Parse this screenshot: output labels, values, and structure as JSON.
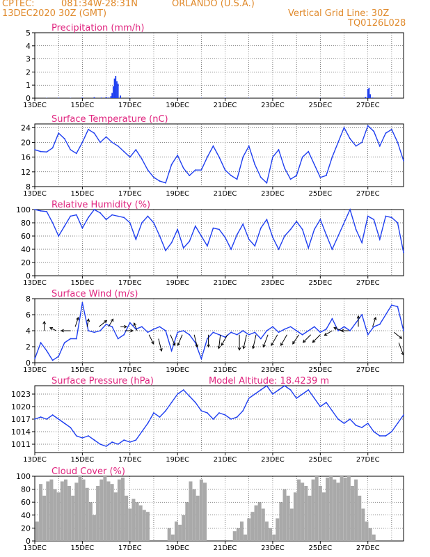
{
  "header": {
    "source": "CPTEC:",
    "coords": "081:34W-28:31N",
    "location": "ORLANDO (U.S.A.)",
    "datetime": "13DEC2020 30Z (GMT)",
    "grid_note": "Vertical Grid Line: 30Z",
    "code": "TQ0126L028"
  },
  "colors": {
    "title": "#e0257f",
    "header": "#e08a2c",
    "series": "#1f3ff0",
    "cloud": "#a9a9a9",
    "arrows": "#000000"
  },
  "x_tick_labels": [
    "13DEC",
    "15DEC",
    "17DEC",
    "19DEC",
    "21DEC",
    "23DEC",
    "25DEC",
    "27DEC"
  ],
  "chart_data": [
    {
      "id": "precip",
      "type": "bar",
      "title": "Precipitation (mm/h)",
      "ylim": [
        0,
        5
      ],
      "yticks": [
        0,
        1,
        2,
        3,
        4,
        5
      ],
      "xlim": [
        0,
        15.5
      ],
      "grid": true,
      "x": [
        0.5,
        1.0,
        1.5,
        2.0,
        2.5,
        2.8,
        3.0,
        3.1,
        3.2,
        3.25,
        3.3,
        3.35,
        3.4,
        3.45,
        3.5,
        3.6,
        4.0,
        5.0,
        6.0,
        7.0,
        8.0,
        9.0,
        10.0,
        11.0,
        12.0,
        13.0,
        13.9,
        14.0,
        14.05,
        14.1,
        14.2,
        15.0
      ],
      "values": [
        0.02,
        0.03,
        0.02,
        0.05,
        0.08,
        0.05,
        0.1,
        0.05,
        0.15,
        0.4,
        0.9,
        1.5,
        1.7,
        1.3,
        1.1,
        0.2,
        0.03,
        0.02,
        0.01,
        0.02,
        0.03,
        0.02,
        0.01,
        0.02,
        0.02,
        0.03,
        0.1,
        0.7,
        0.8,
        0.3,
        0.05,
        0.02
      ]
    },
    {
      "id": "temp",
      "type": "line",
      "title": "Surface Temperature (nC)",
      "ylim": [
        8,
        25
      ],
      "yticks": [
        8,
        12,
        16,
        20,
        24
      ],
      "xlim": [
        0,
        15.5
      ],
      "grid": true,
      "x": [
        0,
        0.25,
        0.5,
        0.75,
        1.0,
        1.25,
        1.5,
        1.75,
        2.0,
        2.25,
        2.5,
        2.75,
        3.0,
        3.25,
        3.5,
        3.75,
        4.0,
        4.25,
        4.5,
        4.75,
        5.0,
        5.25,
        5.5,
        5.75,
        6.0,
        6.25,
        6.5,
        6.75,
        7.0,
        7.25,
        7.5,
        7.75,
        8.0,
        8.25,
        8.5,
        8.75,
        9.0,
        9.25,
        9.5,
        9.75,
        10.0,
        10.25,
        10.5,
        10.75,
        11.0,
        11.25,
        11.5,
        11.75,
        12.0,
        12.25,
        12.5,
        12.75,
        13.0,
        13.25,
        13.5,
        13.75,
        14.0,
        14.25,
        14.5,
        14.75,
        15.0,
        15.25,
        15.5
      ],
      "values": [
        18,
        17.5,
        17.4,
        18.5,
        22.5,
        21,
        18,
        17,
        20,
        23.5,
        22.5,
        20,
        21.5,
        20,
        19,
        17.5,
        16,
        18,
        15.5,
        12.5,
        10.5,
        9.5,
        9,
        14,
        16.5,
        13,
        11,
        12.5,
        12.5,
        16,
        19,
        16,
        12.5,
        11,
        10,
        16,
        19,
        14,
        10.5,
        9,
        16,
        18,
        13,
        10,
        11,
        16,
        17.5,
        14,
        10.5,
        11,
        16,
        20,
        24,
        21,
        19,
        20,
        24.5,
        23,
        19,
        22.5,
        23.5,
        20,
        15
      ]
    },
    {
      "id": "rh",
      "type": "line",
      "title": "Relative Humidity (%)",
      "ylim": [
        0,
        100
      ],
      "yticks": [
        0,
        20,
        40,
        60,
        80,
        100
      ],
      "xlim": [
        0,
        15.5
      ],
      "grid": true,
      "x": [
        0,
        0.25,
        0.5,
        0.75,
        1.0,
        1.25,
        1.5,
        1.75,
        2.0,
        2.25,
        2.5,
        2.75,
        3.0,
        3.25,
        3.5,
        3.75,
        4.0,
        4.25,
        4.5,
        4.75,
        5.0,
        5.25,
        5.5,
        5.75,
        6.0,
        6.25,
        6.5,
        6.75,
        7.0,
        7.25,
        7.5,
        7.75,
        8.0,
        8.25,
        8.5,
        8.75,
        9.0,
        9.25,
        9.5,
        9.75,
        10.0,
        10.25,
        10.5,
        10.75,
        11.0,
        11.25,
        11.5,
        11.75,
        12.0,
        12.25,
        12.5,
        12.75,
        13.0,
        13.25,
        13.5,
        13.75,
        14.0,
        14.25,
        14.5,
        14.75,
        15.0,
        15.25,
        15.5
      ],
      "values": [
        100,
        98,
        97,
        80,
        60,
        75,
        90,
        92,
        72,
        88,
        100,
        95,
        85,
        92,
        90,
        88,
        80,
        55,
        80,
        90,
        80,
        60,
        38,
        50,
        70,
        42,
        52,
        75,
        60,
        45,
        72,
        70,
        58,
        40,
        62,
        78,
        55,
        45,
        72,
        85,
        58,
        40,
        60,
        70,
        82,
        70,
        42,
        70,
        85,
        62,
        40,
        60,
        80,
        100,
        70,
        50,
        90,
        85,
        55,
        90,
        88,
        80,
        35
      ]
    },
    {
      "id": "wind",
      "type": "line",
      "title": "Surface Wind (m/s)",
      "ylim": [
        0,
        8
      ],
      "yticks": [
        0,
        2,
        4,
        6,
        8
      ],
      "xlim": [
        0,
        15.5
      ],
      "grid": true,
      "x": [
        0,
        0.25,
        0.5,
        0.75,
        1.0,
        1.25,
        1.5,
        1.75,
        2.0,
        2.25,
        2.5,
        2.75,
        3.0,
        3.25,
        3.5,
        3.75,
        4.0,
        4.25,
        4.5,
        4.75,
        5.0,
        5.25,
        5.5,
        5.75,
        6.0,
        6.25,
        6.5,
        6.75,
        7.0,
        7.25,
        7.5,
        7.75,
        8.0,
        8.25,
        8.5,
        8.75,
        9.0,
        9.25,
        9.5,
        9.75,
        10.0,
        10.25,
        10.5,
        10.75,
        11.0,
        11.25,
        11.5,
        11.75,
        12.0,
        12.25,
        12.5,
        12.75,
        13.0,
        13.25,
        13.5,
        13.75,
        14.0,
        14.25,
        14.5,
        14.75,
        15.0,
        15.25,
        15.5
      ],
      "values": [
        0.5,
        2.5,
        1.5,
        0.3,
        0.8,
        2.5,
        3.0,
        3.0,
        7.5,
        4.0,
        3.8,
        4.0,
        4.8,
        4.5,
        3.0,
        3.5,
        5.0,
        4.2,
        4.5,
        3.8,
        4.2,
        4.5,
        4.0,
        1.5,
        3.8,
        4.0,
        3.5,
        2.5,
        0.5,
        3.0,
        3.8,
        3.5,
        3.2,
        3.8,
        3.5,
        4.0,
        3.5,
        3.8,
        3.0,
        4.0,
        4.5,
        3.8,
        4.2,
        4.5,
        4.0,
        3.5,
        4.0,
        4.5,
        3.8,
        4.2,
        5.5,
        4.0,
        4.5,
        4.0,
        5.0,
        6.0,
        3.5,
        4.5,
        4.8,
        6.0,
        7.2,
        7.0,
        4.0
      ],
      "arrows": [
        {
          "x": 0.4,
          "y": 4.0,
          "u": 0.0,
          "v": 0.6
        },
        {
          "x": 0.9,
          "y": 4.0,
          "u": -0.4,
          "v": 0.2
        },
        {
          "x": 1.5,
          "y": 4.0,
          "u": -0.6,
          "v": 0.0
        },
        {
          "x": 1.7,
          "y": 4.5,
          "u": 0.2,
          "v": 0.6
        },
        {
          "x": 2.2,
          "y": 4.5,
          "u": 0.1,
          "v": 0.5
        },
        {
          "x": 2.7,
          "y": 4.5,
          "u": 0.5,
          "v": 0.4
        },
        {
          "x": 3.1,
          "y": 4.5,
          "u": 0.3,
          "v": 0.5
        },
        {
          "x": 3.6,
          "y": 4.5,
          "u": 0.4,
          "v": 0.0
        },
        {
          "x": 3.8,
          "y": 4.0,
          "u": 0.5,
          "v": 0.0
        },
        {
          "x": 4.3,
          "y": 4.0,
          "u": -0.2,
          "v": 0.5
        },
        {
          "x": 4.8,
          "y": 3.5,
          "u": 0.3,
          "v": -0.6
        },
        {
          "x": 5.2,
          "y": 3.0,
          "u": 0.2,
          "v": -0.8
        },
        {
          "x": 5.7,
          "y": 3.5,
          "u": 0.3,
          "v": -0.7
        },
        {
          "x": 6.2,
          "y": 3.5,
          "u": -0.3,
          "v": -0.7
        },
        {
          "x": 6.7,
          "y": 3.5,
          "u": 0.2,
          "v": -0.8
        },
        {
          "x": 7.3,
          "y": 3.5,
          "u": 0.0,
          "v": -0.8
        },
        {
          "x": 7.8,
          "y": 3.5,
          "u": -0.1,
          "v": -0.9
        },
        {
          "x": 8.1,
          "y": 3.5,
          "u": -0.4,
          "v": -0.7
        },
        {
          "x": 8.6,
          "y": 3.5,
          "u": 0.0,
          "v": -1.0
        },
        {
          "x": 8.9,
          "y": 3.5,
          "u": -0.2,
          "v": -0.9
        },
        {
          "x": 9.3,
          "y": 3.5,
          "u": -0.2,
          "v": -0.9
        },
        {
          "x": 9.8,
          "y": 3.5,
          "u": -0.3,
          "v": -0.8
        },
        {
          "x": 10.2,
          "y": 3.5,
          "u": -0.4,
          "v": -0.7
        },
        {
          "x": 10.6,
          "y": 3.5,
          "u": -0.4,
          "v": -0.7
        },
        {
          "x": 11.1,
          "y": 3.5,
          "u": -0.4,
          "v": -0.6
        },
        {
          "x": 11.6,
          "y": 3.5,
          "u": -0.5,
          "v": -0.5
        },
        {
          "x": 12.0,
          "y": 3.5,
          "u": -0.5,
          "v": -0.5
        },
        {
          "x": 12.5,
          "y": 4.0,
          "u": -0.5,
          "v": -0.3
        },
        {
          "x": 12.9,
          "y": 4.0,
          "u": -0.5,
          "v": 0.2
        },
        {
          "x": 13.2,
          "y": 4.0,
          "u": -0.5,
          "v": 0.0
        },
        {
          "x": 13.6,
          "y": 4.5,
          "u": 0.0,
          "v": 0.7
        },
        {
          "x": 14.2,
          "y": 4.5,
          "u": 0.2,
          "v": 0.6
        },
        {
          "x": 15.1,
          "y": 3.8,
          "u": 0.5,
          "v": -0.4
        },
        {
          "x": 15.3,
          "y": 2.5,
          "u": 0.3,
          "v": -0.8
        }
      ]
    },
    {
      "id": "press",
      "type": "line",
      "title": "Surface Pressure (hPa)",
      "annotation": "Model Altitude: 18.4239 m",
      "ylim": [
        1009,
        1025
      ],
      "yticks": [
        1011,
        1014,
        1017,
        1020,
        1023
      ],
      "xlim": [
        0,
        15.5
      ],
      "grid": true,
      "x": [
        0,
        0.25,
        0.5,
        0.75,
        1.0,
        1.25,
        1.5,
        1.75,
        2.0,
        2.25,
        2.5,
        2.75,
        3.0,
        3.25,
        3.5,
        3.75,
        4.0,
        4.25,
        4.5,
        4.75,
        5.0,
        5.25,
        5.5,
        5.75,
        6.0,
        6.25,
        6.5,
        6.75,
        7.0,
        7.25,
        7.5,
        7.75,
        8.0,
        8.25,
        8.5,
        8.75,
        9.0,
        9.25,
        9.5,
        9.75,
        10.0,
        10.25,
        10.5,
        10.75,
        11.0,
        11.25,
        11.5,
        11.75,
        12.0,
        12.25,
        12.5,
        12.75,
        13.0,
        13.25,
        13.5,
        13.75,
        14.0,
        14.25,
        14.5,
        14.75,
        15.0,
        15.25,
        15.5
      ],
      "values": [
        1017,
        1017.5,
        1017,
        1018,
        1017,
        1016,
        1015,
        1013,
        1012.5,
        1013,
        1012,
        1011,
        1010.5,
        1011.5,
        1011,
        1012,
        1011.5,
        1012,
        1014,
        1016,
        1018.5,
        1017.5,
        1019,
        1021,
        1023,
        1024,
        1022.5,
        1021,
        1019,
        1018.5,
        1017,
        1018.5,
        1018,
        1017,
        1017.5,
        1019,
        1022,
        1023,
        1024,
        1025,
        1023,
        1024,
        1025,
        1024,
        1022,
        1023,
        1024,
        1022,
        1020,
        1021,
        1019,
        1017,
        1016,
        1017,
        1015.5,
        1015,
        1016,
        1014,
        1013,
        1013,
        1014,
        1016,
        1018
      ]
    },
    {
      "id": "cloud",
      "type": "bar",
      "title": "Cloud Cover (%)",
      "ylim": [
        0,
        100
      ],
      "yticks": [
        0,
        20,
        40,
        60,
        80,
        100
      ],
      "xlim": [
        0,
        15.5
      ],
      "grid": true,
      "x": [
        0.1,
        0.25,
        0.4,
        0.55,
        0.7,
        0.85,
        1.0,
        1.15,
        1.3,
        1.45,
        1.6,
        1.75,
        1.9,
        2.05,
        2.2,
        2.35,
        2.5,
        2.65,
        2.8,
        2.95,
        3.1,
        3.25,
        3.4,
        3.55,
        3.7,
        3.85,
        4.0,
        4.15,
        4.3,
        4.45,
        4.6,
        4.75,
        5.65,
        5.8,
        5.95,
        6.1,
        6.25,
        6.4,
        6.55,
        6.7,
        6.85,
        7.0,
        7.15,
        8.4,
        8.55,
        8.7,
        8.85,
        9.0,
        9.15,
        9.3,
        9.45,
        9.6,
        9.75,
        9.9,
        10.05,
        10.2,
        10.35,
        10.5,
        10.65,
        10.8,
        10.95,
        11.1,
        11.25,
        11.4,
        11.55,
        11.7,
        11.85,
        12.0,
        12.15,
        12.3,
        12.45,
        12.6,
        12.75,
        12.9,
        13.05,
        13.2,
        13.35,
        13.5,
        13.65,
        13.8,
        13.95,
        14.1,
        14.25,
        14.4,
        14.55,
        14.7,
        14.85,
        15.0
      ],
      "values": [
        30,
        88,
        70,
        92,
        95,
        80,
        75,
        92,
        95,
        85,
        70,
        90,
        100,
        95,
        82,
        60,
        40,
        85,
        95,
        100,
        92,
        88,
        75,
        95,
        98,
        70,
        50,
        65,
        60,
        55,
        48,
        45,
        20,
        10,
        30,
        25,
        40,
        60,
        92,
        80,
        70,
        95,
        90,
        15,
        20,
        30,
        10,
        35,
        45,
        55,
        60,
        50,
        30,
        20,
        10,
        35,
        60,
        80,
        70,
        50,
        75,
        95,
        90,
        85,
        70,
        95,
        100,
        85,
        75,
        98,
        100,
        95,
        90,
        100,
        98,
        100,
        85,
        95,
        70,
        50,
        30,
        20,
        10,
        0,
        0,
        0,
        0,
        0
      ]
    }
  ]
}
